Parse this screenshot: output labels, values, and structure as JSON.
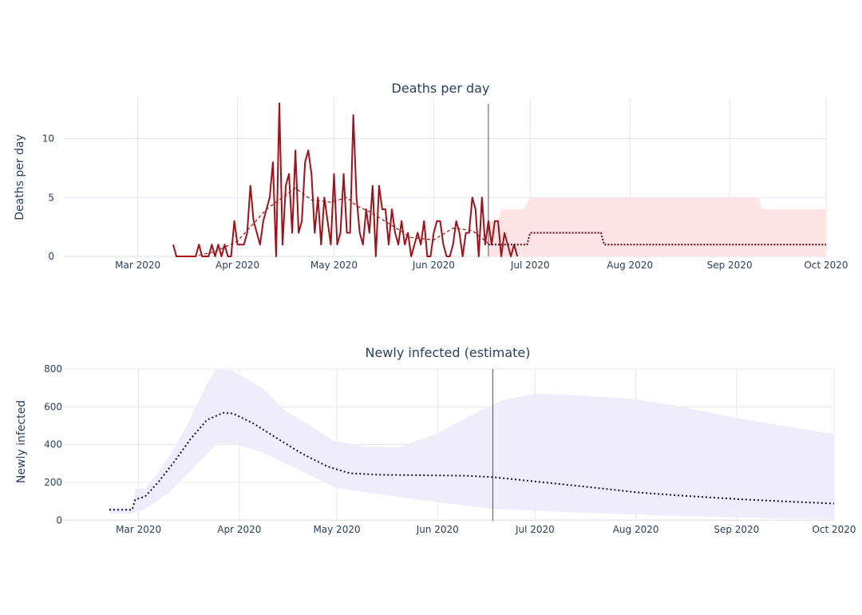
{
  "chart_data": [
    {
      "type": "line",
      "title": "Deaths per day",
      "ylabel": "Deaths per day",
      "xlabel": "",
      "x_type": "date",
      "xlim": [
        "2020-02-07",
        "2020-10-01"
      ],
      "ylim": [
        0,
        13.5
      ],
      "xticks": [
        {
          "date": "2020-03-01",
          "label": "Mar 2020"
        },
        {
          "date": "2020-04-01",
          "label": "Apr 2020"
        },
        {
          "date": "2020-05-01",
          "label": "May 2020"
        },
        {
          "date": "2020-06-01",
          "label": "Jun 2020"
        },
        {
          "date": "2020-07-01",
          "label": "Jul 2020"
        },
        {
          "date": "2020-08-01",
          "label": "Aug 2020"
        },
        {
          "date": "2020-09-01",
          "label": "Sep 2020"
        },
        {
          "date": "2020-10-01",
          "label": "Oct 2020"
        }
      ],
      "yticks": [
        0,
        5,
        10
      ],
      "grid": true,
      "divider_date": "2020-06-18",
      "colors": {
        "observed": "#a50f15",
        "forecast": "#67000d",
        "band": "#fee5e5"
      },
      "start_date": "2020-03-12",
      "observed_daily": [
        1,
        0,
        0,
        0,
        0,
        0,
        0,
        0,
        1,
        0,
        0,
        0,
        1,
        0,
        1,
        0,
        1,
        0,
        0,
        3,
        1,
        1,
        1,
        2,
        6,
        3,
        2,
        1,
        3,
        4,
        5,
        8,
        0,
        13,
        1,
        6,
        7,
        2,
        9,
        2,
        3,
        8,
        9,
        7,
        2,
        5,
        1,
        5,
        3,
        1,
        7,
        1,
        2,
        7,
        2,
        2,
        12,
        5,
        2,
        1,
        4,
        2,
        6,
        0,
        6,
        4,
        4,
        1,
        4,
        2,
        1,
        3,
        1,
        2,
        0,
        1,
        2,
        1,
        3,
        0,
        0,
        2,
        3,
        3,
        1,
        0,
        0,
        1,
        3,
        2,
        0,
        2,
        2,
        5,
        4,
        0,
        5,
        1,
        3,
        1,
        3,
        3,
        0,
        2,
        1,
        0,
        1,
        0
      ],
      "smoothed": [
        {
          "x": "2020-03-20",
          "y": 0.1
        },
        {
          "x": "2020-03-25",
          "y": 0.4
        },
        {
          "x": "2020-04-01",
          "y": 1.3
        },
        {
          "x": "2020-04-05",
          "y": 2.5
        },
        {
          "x": "2020-04-10",
          "y": 4.0
        },
        {
          "x": "2020-04-15",
          "y": 5.0
        },
        {
          "x": "2020-04-19",
          "y": 5.8
        },
        {
          "x": "2020-04-24",
          "y": 4.8
        },
        {
          "x": "2020-04-30",
          "y": 4.6
        },
        {
          "x": "2020-05-05",
          "y": 5.0
        },
        {
          "x": "2020-05-08",
          "y": 4.3
        },
        {
          "x": "2020-05-12",
          "y": 3.8
        },
        {
          "x": "2020-05-18",
          "y": 2.8
        },
        {
          "x": "2020-05-25",
          "y": 1.6
        },
        {
          "x": "2020-06-01",
          "y": 1.4
        },
        {
          "x": "2020-06-07",
          "y": 2.4
        },
        {
          "x": "2020-06-13",
          "y": 2.2
        },
        {
          "x": "2020-06-18",
          "y": 1.1
        }
      ],
      "forecast": [
        {
          "x": "2020-06-18",
          "y": 1
        },
        {
          "x": "2020-06-30",
          "y": 1
        },
        {
          "x": "2020-07-01",
          "y": 2
        },
        {
          "x": "2020-07-23",
          "y": 2
        },
        {
          "x": "2020-07-24",
          "y": 1
        },
        {
          "x": "2020-10-01",
          "y": 1
        }
      ],
      "band_upper": [
        {
          "x": "2020-06-18",
          "y": 3
        },
        {
          "x": "2020-06-21",
          "y": 3
        },
        {
          "x": "2020-06-22",
          "y": 4
        },
        {
          "x": "2020-06-29",
          "y": 4
        },
        {
          "x": "2020-07-01",
          "y": 5
        },
        {
          "x": "2020-09-10",
          "y": 5
        },
        {
          "x": "2020-09-11",
          "y": 4
        },
        {
          "x": "2020-10-01",
          "y": 4
        }
      ],
      "band_lower": [
        {
          "x": "2020-06-18",
          "y": 0
        },
        {
          "x": "2020-10-01",
          "y": 0
        }
      ]
    },
    {
      "type": "line",
      "title": "Newly infected (estimate)",
      "ylabel": "Newly infected",
      "xlabel": "",
      "x_type": "date",
      "xlim": [
        "2020-02-07",
        "2020-10-01"
      ],
      "ylim": [
        -3,
        800
      ],
      "xticks": [
        {
          "date": "2020-03-01",
          "label": "Mar 2020"
        },
        {
          "date": "2020-04-01",
          "label": "Apr 2020"
        },
        {
          "date": "2020-05-01",
          "label": "May 2020"
        },
        {
          "date": "2020-06-01",
          "label": "Jun 2020"
        },
        {
          "date": "2020-07-01",
          "label": "Jul 2020"
        },
        {
          "date": "2020-08-01",
          "label": "Aug 2020"
        },
        {
          "date": "2020-09-01",
          "label": "Sep 2020"
        },
        {
          "date": "2020-10-01",
          "label": "Oct 2020"
        }
      ],
      "yticks": [
        0,
        200,
        400,
        600,
        800
      ],
      "grid": true,
      "divider_date": "2020-06-18",
      "colors": {
        "line": "#1a0d33",
        "band": "#efecfc"
      },
      "estimate": [
        {
          "x": "2020-02-21",
          "y": 55
        },
        {
          "x": "2020-02-28",
          "y": 55
        },
        {
          "x": "2020-02-29",
          "y": 110
        },
        {
          "x": "2020-03-03",
          "y": 125
        },
        {
          "x": "2020-03-07",
          "y": 200
        },
        {
          "x": "2020-03-12",
          "y": 310
        },
        {
          "x": "2020-03-17",
          "y": 430
        },
        {
          "x": "2020-03-22",
          "y": 530
        },
        {
          "x": "2020-03-27",
          "y": 568
        },
        {
          "x": "2020-03-30",
          "y": 565
        },
        {
          "x": "2020-04-05",
          "y": 515
        },
        {
          "x": "2020-04-12",
          "y": 440
        },
        {
          "x": "2020-04-20",
          "y": 355
        },
        {
          "x": "2020-04-28",
          "y": 285
        },
        {
          "x": "2020-05-05",
          "y": 248
        },
        {
          "x": "2020-05-15",
          "y": 240
        },
        {
          "x": "2020-06-01",
          "y": 237
        },
        {
          "x": "2020-06-10",
          "y": 235
        },
        {
          "x": "2020-06-18",
          "y": 228
        },
        {
          "x": "2020-07-01",
          "y": 205
        },
        {
          "x": "2020-07-15",
          "y": 180
        },
        {
          "x": "2020-08-01",
          "y": 148
        },
        {
          "x": "2020-08-15",
          "y": 130
        },
        {
          "x": "2020-09-01",
          "y": 112
        },
        {
          "x": "2020-09-15",
          "y": 100
        },
        {
          "x": "2020-10-01",
          "y": 88
        }
      ],
      "band_upper": [
        {
          "x": "2020-02-21",
          "y": 65
        },
        {
          "x": "2020-02-28",
          "y": 65
        },
        {
          "x": "2020-02-29",
          "y": 165
        },
        {
          "x": "2020-03-03",
          "y": 170
        },
        {
          "x": "2020-03-07",
          "y": 250
        },
        {
          "x": "2020-03-12",
          "y": 380
        },
        {
          "x": "2020-03-17",
          "y": 540
        },
        {
          "x": "2020-03-22",
          "y": 720
        },
        {
          "x": "2020-03-25",
          "y": 800
        },
        {
          "x": "2020-03-30",
          "y": 790
        },
        {
          "x": "2020-04-08",
          "y": 700
        },
        {
          "x": "2020-04-15",
          "y": 580
        },
        {
          "x": "2020-04-22",
          "y": 510
        },
        {
          "x": "2020-04-30",
          "y": 420
        },
        {
          "x": "2020-05-10",
          "y": 390
        },
        {
          "x": "2020-05-20",
          "y": 385
        },
        {
          "x": "2020-06-01",
          "y": 460
        },
        {
          "x": "2020-06-15",
          "y": 590
        },
        {
          "x": "2020-06-22",
          "y": 640
        },
        {
          "x": "2020-07-01",
          "y": 670
        },
        {
          "x": "2020-07-15",
          "y": 660
        },
        {
          "x": "2020-08-01",
          "y": 640
        },
        {
          "x": "2020-08-15",
          "y": 600
        },
        {
          "x": "2020-09-01",
          "y": 540
        },
        {
          "x": "2020-09-15",
          "y": 500
        },
        {
          "x": "2020-10-01",
          "y": 455
        }
      ],
      "band_lower": [
        {
          "x": "2020-02-21",
          "y": 35
        },
        {
          "x": "2020-02-28",
          "y": 35
        },
        {
          "x": "2020-03-03",
          "y": 60
        },
        {
          "x": "2020-03-10",
          "y": 140
        },
        {
          "x": "2020-03-17",
          "y": 260
        },
        {
          "x": "2020-03-25",
          "y": 405
        },
        {
          "x": "2020-03-30",
          "y": 405
        },
        {
          "x": "2020-04-08",
          "y": 360
        },
        {
          "x": "2020-04-20",
          "y": 260
        },
        {
          "x": "2020-05-01",
          "y": 170
        },
        {
          "x": "2020-05-15",
          "y": 135
        },
        {
          "x": "2020-06-01",
          "y": 95
        },
        {
          "x": "2020-06-18",
          "y": 60
        },
        {
          "x": "2020-07-15",
          "y": 40
        },
        {
          "x": "2020-08-15",
          "y": 22
        },
        {
          "x": "2020-09-15",
          "y": 8
        },
        {
          "x": "2020-10-01",
          "y": 5
        }
      ]
    }
  ]
}
